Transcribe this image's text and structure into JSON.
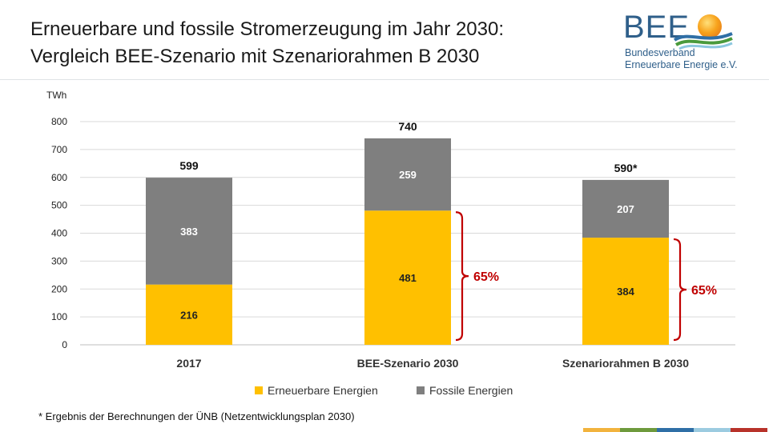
{
  "header": {
    "title_line1": "Erneuerbare und fossile Stromerzeugung im Jahr 2030:",
    "title_line2": "Vergleich BEE-Szenario mit Szenariorahmen B 2030"
  },
  "logo": {
    "wordmark": "BEE",
    "line1": "Bundesverband",
    "line2": "Erneuerbare Energie e.V."
  },
  "chart_data": {
    "type": "bar",
    "stacked": true,
    "title": "Erneuerbare und fossile Stromerzeugung im Jahr 2030: Vergleich BEE-Szenario mit Szenariorahmen B 2030",
    "ylabel": "TWh",
    "ylim": [
      0,
      800
    ],
    "yticks": [
      0,
      100,
      200,
      300,
      400,
      500,
      600,
      700,
      800
    ],
    "grid": true,
    "legend_position": "bottom",
    "categories": [
      "2017",
      "BEE-Szenario 2030",
      "Szenariorahmen B 2030"
    ],
    "series": [
      {
        "name": "Erneuerbare Energien",
        "color": "#FFC000",
        "values": [
          216,
          481,
          384
        ]
      },
      {
        "name": "Fossile Energien",
        "color": "#7F7F7F",
        "values": [
          383,
          259,
          207
        ]
      }
    ],
    "totals": [
      "599",
      "740",
      "590*"
    ],
    "annotations": [
      {
        "category": "BEE-Szenario 2030",
        "text": "65%",
        "color": "#C00000"
      },
      {
        "category": "Szenariorahmen B 2030",
        "text": "65%",
        "color": "#C00000"
      }
    ]
  },
  "footnote": "* Ergebnis der Berechnungen der ÜNB (Netzentwicklungsplan 2030)",
  "footer_colors": [
    "#F2B33D",
    "#6E9A3C",
    "#2F6FA6",
    "#9CCBE0",
    "#B8322A"
  ]
}
